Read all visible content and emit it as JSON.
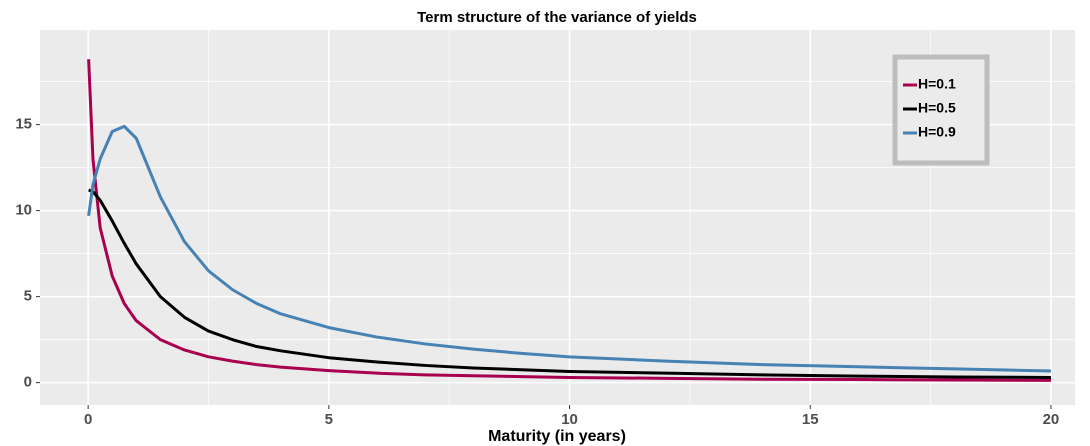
{
  "chart_data": {
    "type": "line",
    "title": "Term structure of the variance of yields",
    "x_label": "Maturity (in years)",
    "x": [
      0.01,
      0.1,
      0.25,
      0.5,
      0.75,
      1,
      1.5,
      2,
      2.5,
      3,
      3.5,
      4,
      5,
      6,
      7,
      8,
      9,
      10,
      12,
      14,
      16,
      18,
      20
    ],
    "series": [
      {
        "name": "H=0.1",
        "color": "#a8004f",
        "values": [
          18.8,
          13,
          9,
          6.2,
          4.6,
          3.6,
          2.5,
          1.9,
          1.5,
          1.25,
          1.05,
          0.9,
          0.7,
          0.55,
          0.45,
          0.4,
          0.35,
          0.3,
          0.25,
          0.2,
          0.18,
          0.15,
          0.13
        ]
      },
      {
        "name": "H=0.5",
        "color": "#000000",
        "values": [
          11.2,
          11.1,
          10.6,
          9.4,
          8.1,
          6.9,
          5.0,
          3.8,
          3.0,
          2.5,
          2.1,
          1.85,
          1.45,
          1.2,
          1.0,
          0.85,
          0.75,
          0.65,
          0.55,
          0.45,
          0.38,
          0.33,
          0.3
        ]
      },
      {
        "name": "H=0.9",
        "color": "#4682b4",
        "values": [
          9.7,
          11.5,
          13.0,
          14.6,
          14.9,
          14.2,
          10.8,
          8.2,
          6.5,
          5.4,
          4.6,
          4.0,
          3.2,
          2.65,
          2.25,
          1.95,
          1.7,
          1.5,
          1.25,
          1.05,
          0.92,
          0.8,
          0.68
        ]
      }
    ],
    "xlim": [
      -1,
      20.5
    ],
    "ylim": [
      -1.3,
      20.5
    ],
    "xticks": [
      0,
      5,
      10,
      15,
      20
    ],
    "yticks": [
      0,
      5,
      10,
      15
    ],
    "x_minor_ticks": [
      2.5,
      7.5,
      12.5,
      17.5
    ],
    "y_minor_ticks": [
      2.5,
      7.5,
      12.5,
      17.5
    ],
    "grid": true,
    "legend_position": "top-right"
  }
}
